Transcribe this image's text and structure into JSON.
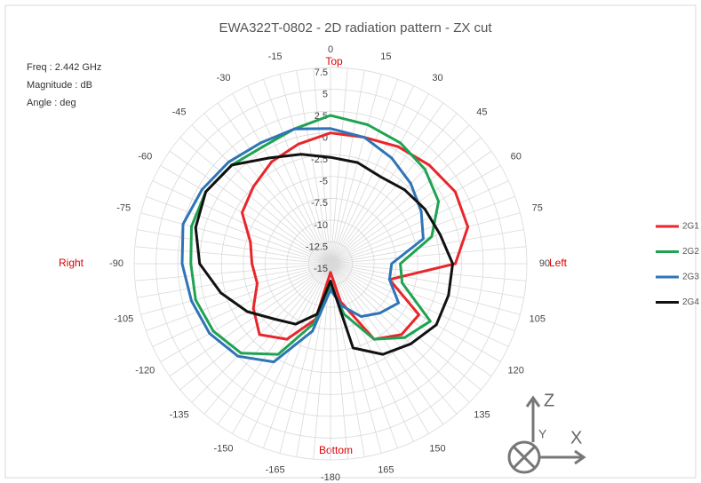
{
  "chart_data": {
    "type": "polar_line",
    "title": "EWA322T-0802  -  2D radiation pattern - ZX cut",
    "annotations": [
      "Freq : 2.442 GHz",
      "Magnitude : dB",
      "Angle : deg"
    ],
    "direction_labels": {
      "top": "Top",
      "left": "Left",
      "bottom": "Bottom",
      "right": "Right"
    },
    "axis_icon": {
      "z": "Z",
      "y": "Y",
      "x": "X"
    },
    "x": [
      0,
      15,
      30,
      45,
      60,
      75,
      90,
      105,
      120,
      135,
      150,
      165,
      180,
      -165,
      -150,
      -135,
      -120,
      -105,
      -90,
      -75,
      -60,
      -45,
      -30,
      -15
    ],
    "rlim": [
      -15,
      7.5
    ],
    "rticks": [
      -15,
      -12.5,
      -10,
      -7.5,
      -5,
      -2.5,
      0,
      2.5,
      5,
      7.5
    ],
    "angle_ticks": [
      0,
      15,
      30,
      45,
      60,
      75,
      90,
      105,
      120,
      135,
      150,
      165,
      -180,
      -165,
      -150,
      -135,
      -120,
      -105,
      -90,
      -75,
      -60,
      -45,
      -30,
      -15
    ],
    "series": [
      {
        "name": "2G1",
        "color": "#e8262b",
        "values": [
          0,
          0,
          0.5,
          1,
          1.5,
          1.3,
          -0.7,
          -8,
          -3.3,
          -3.5,
          -5,
          -10.5,
          -14,
          -8.4,
          -5,
          -3.5,
          -4.8,
          -6.3,
          -6,
          -5.5,
          -3.3,
          -2.5,
          -1.5,
          -0.8
        ]
      },
      {
        "name": "2G2",
        "color": "#1fa352",
        "values": [
          2,
          1.5,
          1,
          0.3,
          -0.7,
          -3,
          -7,
          -6.5,
          -1.8,
          -3,
          -5,
          -9,
          -12.5,
          -8,
          -3,
          -0.5,
          0.5,
          1,
          1,
          1.5,
          1.5,
          1,
          0.5,
          1
        ]
      },
      {
        "name": "2G3",
        "color": "#2e75b6",
        "values": [
          0.5,
          0,
          -1,
          -2,
          -3,
          -4,
          -8,
          -8,
          -6,
          -7,
          -8,
          -10,
          -12,
          -7,
          -2,
          0,
          1,
          1.5,
          2,
          2.5,
          2,
          1.5,
          1,
          1
        ]
      },
      {
        "name": "2G4",
        "color": "#111111",
        "values": [
          -2.8,
          -3,
          -3.5,
          -3,
          -2.5,
          -2,
          -1,
          -1,
          -1,
          -2,
          -3,
          -5,
          -13,
          -9,
          -7,
          -6,
          -4,
          -2,
          0,
          1,
          1.5,
          1,
          -1,
          -2
        ]
      }
    ]
  }
}
